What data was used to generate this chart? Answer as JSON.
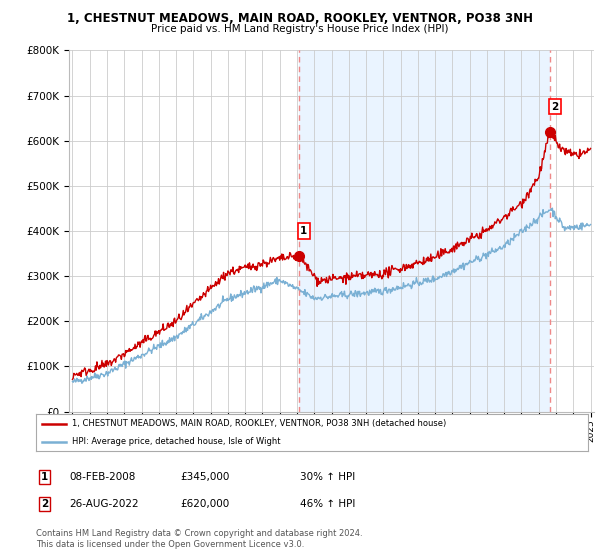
{
  "title_line1": "1, CHESTNUT MEADOWS, MAIN ROAD, ROOKLEY, VENTNOR, PO38 3NH",
  "title_line2": "Price paid vs. HM Land Registry's House Price Index (HPI)",
  "ylim": [
    0,
    800000
  ],
  "yticks": [
    0,
    100000,
    200000,
    300000,
    400000,
    500000,
    600000,
    700000,
    800000
  ],
  "ytick_labels": [
    "£0",
    "£100K",
    "£200K",
    "£300K",
    "£400K",
    "£500K",
    "£600K",
    "£700K",
    "£800K"
  ],
  "year_start": 1995,
  "year_end": 2025,
  "sale1_year": 2008.1,
  "sale1_price": 345000,
  "sale2_year": 2022.65,
  "sale2_price": 620000,
  "sale1_date": "08-FEB-2008",
  "sale1_amount": "£345,000",
  "sale1_hpi": "30% ↑ HPI",
  "sale2_date": "26-AUG-2022",
  "sale2_amount": "£620,000",
  "sale2_hpi": "46% ↑ HPI",
  "line_color_red": "#cc0000",
  "line_color_blue": "#7ab0d4",
  "shade_color": "#ddeeff",
  "dashed_line_color": "#ee8888",
  "background_color": "#ffffff",
  "grid_color": "#cccccc",
  "legend_label_red": "1, CHESTNUT MEADOWS, MAIN ROAD, ROOKLEY, VENTNOR, PO38 3NH (detached house)",
  "legend_label_blue": "HPI: Average price, detached house, Isle of Wight",
  "footer_text": "Contains HM Land Registry data © Crown copyright and database right 2024.\nThis data is licensed under the Open Government Licence v3.0."
}
